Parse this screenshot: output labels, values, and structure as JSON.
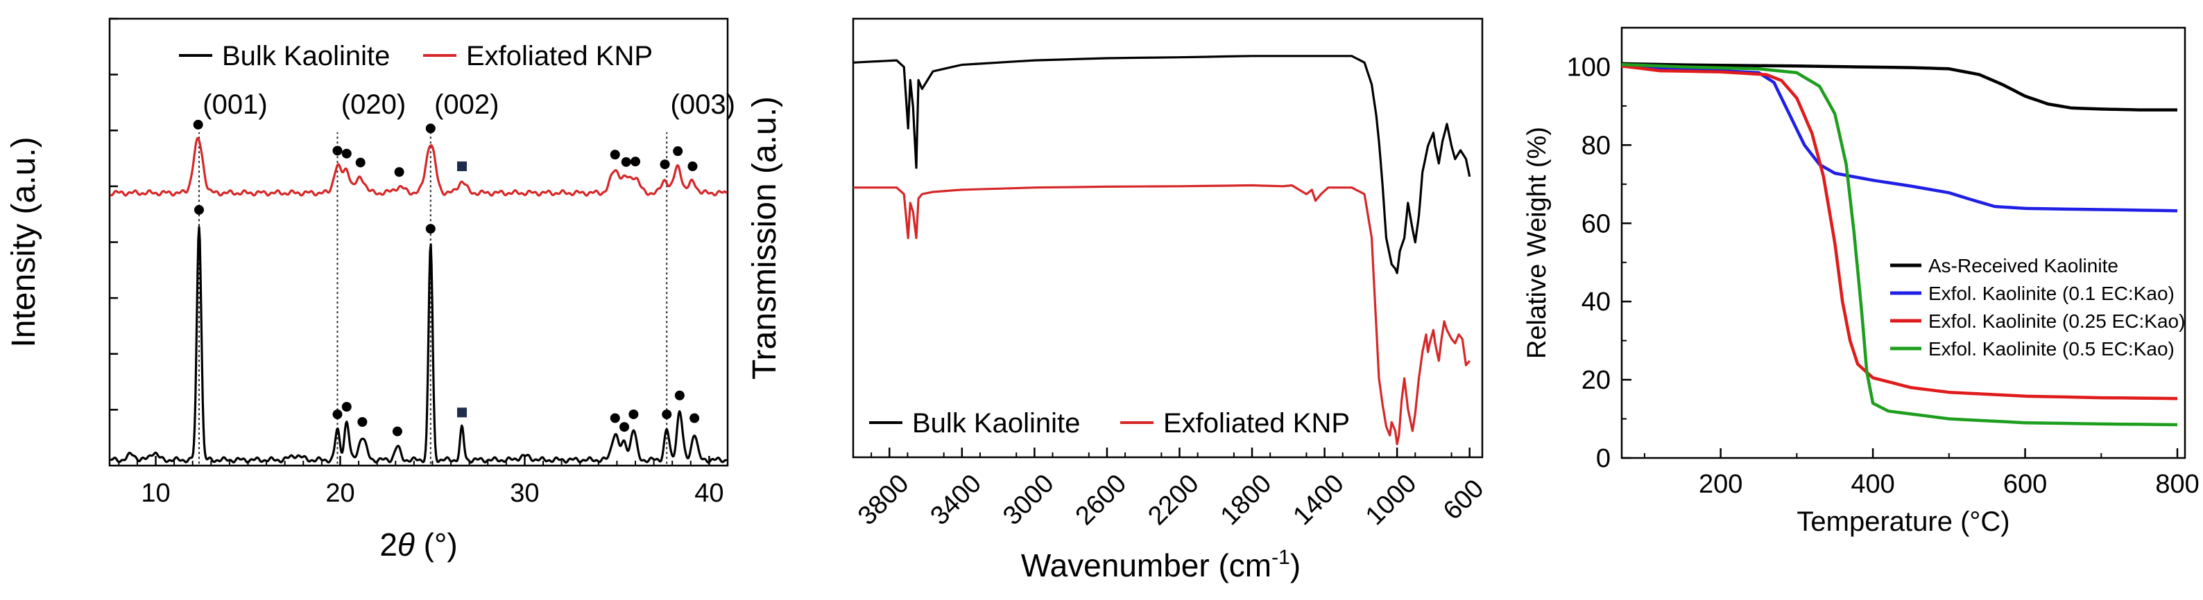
{
  "chart_data": [
    {
      "type": "line",
      "panel": "xrd",
      "xlabel_main": "2",
      "xlabel_sym": "θ",
      "xlabel_unit": " (°)",
      "ylabel": "Intensity (a.u.)",
      "xlim": [
        7.5,
        41
      ],
      "ylim": [
        0,
        1.18
      ],
      "xticks": [
        10,
        20,
        30,
        40
      ],
      "xtick_labels": [
        "10",
        "20",
        "30",
        "40"
      ],
      "legend": {
        "position": "top-center",
        "entries": [
          "Bulk Kaolinite",
          "Exfoliated KNP"
        ]
      },
      "colors": {
        "Bulk Kaolinite": "#000000",
        "Exfoliated KNP": "#d62728",
        "square_marker": "#1f2d4d"
      },
      "reflections": [
        {
          "label": "(001)",
          "x": 12.35
        },
        {
          "label": "(020)",
          "x": 19.85
        },
        {
          "label": "(002)",
          "x": 24.9
        },
        {
          "label": "(003)",
          "x": 37.7
        }
      ],
      "series": [
        {
          "name": "Exfoliated KNP",
          "baseline": 0.72,
          "peaks": [
            [
              12.3,
              0.14,
              0.25
            ],
            [
              19.85,
              0.07,
              0.2
            ],
            [
              20.35,
              0.06,
              0.18
            ],
            [
              21.1,
              0.04,
              0.25
            ],
            [
              23.2,
              0.015,
              0.3
            ],
            [
              24.9,
              0.13,
              0.25
            ],
            [
              26.6,
              0.03,
              0.22
            ],
            [
              34.9,
              0.06,
              0.25
            ],
            [
              35.5,
              0.035,
              0.22
            ],
            [
              36.0,
              0.04,
              0.22
            ],
            [
              37.6,
              0.035,
              0.18
            ],
            [
              38.3,
              0.07,
              0.2
            ],
            [
              39.1,
              0.03,
              0.2
            ]
          ],
          "dot_markers": [
            12.3,
            19.85,
            20.35,
            21.1,
            23.2,
            24.9,
            34.9,
            35.5,
            36.0,
            37.6,
            38.3,
            39.1
          ],
          "square_markers": [
            26.6
          ]
        },
        {
          "name": "Bulk Kaolinite",
          "baseline": 0.015,
          "peaks": [
            [
              8.7,
              0.015,
              0.2
            ],
            [
              9.9,
              0.02,
              0.2
            ],
            [
              12.35,
              0.62,
              0.12
            ],
            [
              17.6,
              0.012,
              0.3
            ],
            [
              19.85,
              0.08,
              0.12
            ],
            [
              20.35,
              0.1,
              0.13
            ],
            [
              21.2,
              0.06,
              0.2
            ],
            [
              23.1,
              0.035,
              0.15
            ],
            [
              24.9,
              0.57,
              0.11
            ],
            [
              26.6,
              0.085,
              0.1
            ],
            [
              30.0,
              0.01,
              0.3
            ],
            [
              34.9,
              0.07,
              0.18
            ],
            [
              35.4,
              0.045,
              0.15
            ],
            [
              35.9,
              0.08,
              0.15
            ],
            [
              37.7,
              0.08,
              0.13
            ],
            [
              38.4,
              0.13,
              0.15
            ],
            [
              39.2,
              0.07,
              0.15
            ]
          ],
          "dot_markers": [
            12.35,
            19.85,
            20.35,
            21.2,
            23.1,
            24.9,
            34.9,
            35.4,
            35.9,
            37.7,
            38.4,
            39.2
          ],
          "square_markers": [
            26.6
          ]
        }
      ]
    },
    {
      "type": "line",
      "panel": "ftir",
      "xlabel_main": "Wavenumber (cm",
      "xlabel_sup": "-1",
      "xlabel_close": ")",
      "ylabel": "Transmission (a.u.)",
      "xlim": [
        4000,
        530
      ],
      "ylim": [
        0,
        1
      ],
      "reversed_x": true,
      "xticks": [
        3800,
        3400,
        3000,
        2600,
        2200,
        1800,
        1400,
        1000,
        600
      ],
      "xtick_labels": [
        "3800",
        "3400",
        "3000",
        "2600",
        "2200",
        "1800",
        "1400",
        "1000",
        "600"
      ],
      "legend": {
        "position": "bottom-left",
        "entries": [
          "Bulk Kaolinite",
          "Exfoliated KNP"
        ]
      },
      "colors": {
        "Bulk Kaolinite": "#000000",
        "Exfoliated KNP": "#d62728"
      },
      "series": [
        {
          "name": "Bulk Kaolinite",
          "points": [
            [
              4000,
              0.9
            ],
            [
              3760,
              0.905
            ],
            [
              3720,
              0.89
            ],
            [
              3697,
              0.75
            ],
            [
              3685,
              0.86
            ],
            [
              3670,
              0.8
            ],
            [
              3652,
              0.66
            ],
            [
              3640,
              0.86
            ],
            [
              3620,
              0.84
            ],
            [
              3560,
              0.88
            ],
            [
              3400,
              0.895
            ],
            [
              3000,
              0.905
            ],
            [
              2600,
              0.91
            ],
            [
              2200,
              0.912
            ],
            [
              1800,
              0.915
            ],
            [
              1400,
              0.915
            ],
            [
              1250,
              0.915
            ],
            [
              1180,
              0.9
            ],
            [
              1140,
              0.85
            ],
            [
              1115,
              0.78
            ],
            [
              1100,
              0.72
            ],
            [
              1080,
              0.62
            ],
            [
              1060,
              0.5
            ],
            [
              1030,
              0.44
            ],
            [
              1010,
              0.43
            ],
            [
              1000,
              0.42
            ],
            [
              985,
              0.47
            ],
            [
              960,
              0.5
            ],
            [
              940,
              0.58
            ],
            [
              915,
              0.52
            ],
            [
              900,
              0.49
            ],
            [
              880,
              0.55
            ],
            [
              860,
              0.65
            ],
            [
              830,
              0.71
            ],
            [
              800,
              0.74
            ],
            [
              790,
              0.71
            ],
            [
              770,
              0.67
            ],
            [
              750,
              0.72
            ],
            [
              725,
              0.76
            ],
            [
              700,
              0.71
            ],
            [
              680,
              0.68
            ],
            [
              650,
              0.7
            ],
            [
              620,
              0.68
            ],
            [
              600,
              0.64
            ]
          ]
        },
        {
          "name": "Exfoliated KNP",
          "points": [
            [
              4000,
              0.615
            ],
            [
              3760,
              0.615
            ],
            [
              3720,
              0.6
            ],
            [
              3697,
              0.5
            ],
            [
              3685,
              0.58
            ],
            [
              3670,
              0.56
            ],
            [
              3652,
              0.5
            ],
            [
              3640,
              0.59
            ],
            [
              3620,
              0.6
            ],
            [
              3560,
              0.605
            ],
            [
              3400,
              0.61
            ],
            [
              3000,
              0.615
            ],
            [
              2600,
              0.617
            ],
            [
              2200,
              0.618
            ],
            [
              1800,
              0.62
            ],
            [
              1630,
              0.618
            ],
            [
              1580,
              0.62
            ],
            [
              1500,
              0.6
            ],
            [
              1470,
              0.61
            ],
            [
              1450,
              0.585
            ],
            [
              1420,
              0.6
            ],
            [
              1380,
              0.615
            ],
            [
              1250,
              0.615
            ],
            [
              1180,
              0.6
            ],
            [
              1140,
              0.5
            ],
            [
              1115,
              0.3
            ],
            [
              1100,
              0.18
            ],
            [
              1080,
              0.12
            ],
            [
              1060,
              0.07
            ],
            [
              1040,
              0.05
            ],
            [
              1030,
              0.08
            ],
            [
              1010,
              0.06
            ],
            [
              1000,
              0.03
            ],
            [
              990,
              0.05
            ],
            [
              975,
              0.13
            ],
            [
              960,
              0.18
            ],
            [
              940,
              0.11
            ],
            [
              915,
              0.06
            ],
            [
              900,
              0.1
            ],
            [
              880,
              0.18
            ],
            [
              860,
              0.24
            ],
            [
              840,
              0.28
            ],
            [
              830,
              0.24
            ],
            [
              820,
              0.26
            ],
            [
              800,
              0.29
            ],
            [
              790,
              0.26
            ],
            [
              770,
              0.22
            ],
            [
              755,
              0.27
            ],
            [
              740,
              0.31
            ],
            [
              725,
              0.29
            ],
            [
              700,
              0.27
            ],
            [
              680,
              0.26
            ],
            [
              660,
              0.28
            ],
            [
              640,
              0.27
            ],
            [
              620,
              0.21
            ],
            [
              600,
              0.22
            ]
          ]
        }
      ]
    },
    {
      "type": "line",
      "panel": "tga",
      "xlabel": "Temperature (°C)",
      "ylabel": "Relative Weight (%)",
      "xlim": [
        70,
        810
      ],
      "ylim": [
        0,
        110
      ],
      "xticks": [
        200,
        400,
        600,
        800
      ],
      "xtick_labels": [
        "200",
        "400",
        "600",
        "800"
      ],
      "yticks": [
        0,
        20,
        40,
        60,
        80,
        100
      ],
      "ytick_labels": [
        "0",
        "20",
        "40",
        "60",
        "80",
        "100"
      ],
      "legend": {
        "position": "center-right",
        "entries": [
          "As-Received Kaolinite",
          "Exfol. Kaolinite (0.1 EC:Kao)",
          "Exfol. Kaolinite (0.25 EC:Kao)",
          "Exfol. Kaolinite (0.5 EC:Kao)"
        ]
      },
      "colors": {
        "As-Received Kaolinite": "#000000",
        "Exfol. Kaolinite (0.1 EC:Kao)": "#1f1fe6",
        "Exfol. Kaolinite (0.25 EC:Kao)": "#e01b1b",
        "Exfol. Kaolinite (0.5 EC:Kao)": "#1e9e1e"
      },
      "series": [
        {
          "name": "As-Received Kaolinite",
          "points": [
            [
              70,
              100.8
            ],
            [
              150,
              100.5
            ],
            [
              300,
              100.2
            ],
            [
              450,
              99.8
            ],
            [
              500,
              99.5
            ],
            [
              540,
              98.0
            ],
            [
              570,
              95.5
            ],
            [
              600,
              92.5
            ],
            [
              630,
              90.5
            ],
            [
              660,
              89.5
            ],
            [
              700,
              89.2
            ],
            [
              750,
              89.0
            ],
            [
              800,
              89.0
            ]
          ]
        },
        {
          "name": "Exfol. Kaolinite (0.1 EC:Kao)",
          "points": [
            [
              70,
              100.3
            ],
            [
              120,
              99.5
            ],
            [
              200,
              99.0
            ],
            [
              250,
              98.5
            ],
            [
              270,
              96.0
            ],
            [
              290,
              88.0
            ],
            [
              310,
              80.0
            ],
            [
              330,
              75.0
            ],
            [
              350,
              72.8
            ],
            [
              400,
              71.0
            ],
            [
              450,
              69.5
            ],
            [
              500,
              67.8
            ],
            [
              530,
              66.0
            ],
            [
              560,
              64.3
            ],
            [
              600,
              63.8
            ],
            [
              700,
              63.5
            ],
            [
              800,
              63.2
            ]
          ]
        },
        {
          "name": "Exfol. Kaolinite (0.25 EC:Kao)",
          "points": [
            [
              70,
              100.2
            ],
            [
              120,
              99.0
            ],
            [
              200,
              98.7
            ],
            [
              260,
              98.0
            ],
            [
              280,
              96.5
            ],
            [
              300,
              92.0
            ],
            [
              320,
              83.0
            ],
            [
              335,
              72.0
            ],
            [
              350,
              55.0
            ],
            [
              360,
              40.0
            ],
            [
              370,
              30.0
            ],
            [
              380,
              24.0
            ],
            [
              400,
              20.5
            ],
            [
              450,
              18.0
            ],
            [
              500,
              16.8
            ],
            [
              600,
              15.8
            ],
            [
              700,
              15.4
            ],
            [
              800,
              15.2
            ]
          ]
        },
        {
          "name": "Exfol. Kaolinite (0.5 EC:Kao)",
          "points": [
            [
              70,
              100.6
            ],
            [
              150,
              100.0
            ],
            [
              250,
              99.5
            ],
            [
              300,
              98.5
            ],
            [
              330,
              95.0
            ],
            [
              350,
              88.0
            ],
            [
              365,
              75.0
            ],
            [
              375,
              58.0
            ],
            [
              385,
              38.0
            ],
            [
              392,
              22.0
            ],
            [
              400,
              14.0
            ],
            [
              420,
              12.0
            ],
            [
              500,
              10.0
            ],
            [
              600,
              9.0
            ],
            [
              700,
              8.7
            ],
            [
              800,
              8.5
            ]
          ]
        }
      ]
    }
  ]
}
